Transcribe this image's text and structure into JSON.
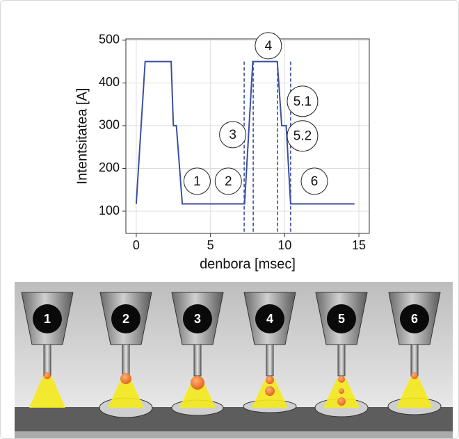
{
  "chart_data": {
    "type": "line",
    "xlabel": "denbora [msec]",
    "ylabel": "Intentsitatea [A]",
    "xlim": [
      -0.7,
      15.7
    ],
    "ylim": [
      48,
      503
    ],
    "xticks": [
      0,
      5,
      10,
      15
    ],
    "yticks": [
      100,
      200,
      300,
      400,
      500
    ],
    "grid": true,
    "series": [
      {
        "color": "#3b4fa0",
        "x": [
          0,
          0.6,
          2.35,
          2.5,
          2.7,
          3.1,
          7.3,
          7.85,
          9.5,
          9.8,
          10.1,
          10.4,
          14.7
        ],
        "values": [
          117,
          450,
          450,
          300,
          300,
          117,
          117,
          450,
          450,
          300,
          300,
          117,
          117
        ]
      }
    ],
    "vlines": [
      7.27,
      7.88,
      9.52,
      10.4
    ],
    "annotations": [
      {
        "text": "1",
        "x": 4.1,
        "y": 170
      },
      {
        "text": "2",
        "x": 6.2,
        "y": 170
      },
      {
        "text": "3",
        "x": 6.5,
        "y": 279
      },
      {
        "text": "4",
        "x": 8.9,
        "y": 487
      },
      {
        "text": "5.1",
        "x": 11.2,
        "y": 357
      },
      {
        "text": "5.2",
        "x": 11.2,
        "y": 276
      },
      {
        "text": "6",
        "x": 12.0,
        "y": 170
      }
    ]
  },
  "illustration": {
    "labels": [
      "1",
      "2",
      "3",
      "4",
      "5",
      "6"
    ]
  }
}
